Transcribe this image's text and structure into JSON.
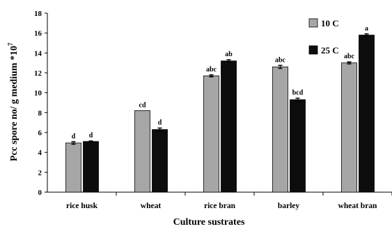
{
  "chart_data": {
    "type": "bar",
    "categories": [
      "rice husk",
      "wheat",
      "rice bran",
      "barley",
      "wheat bran"
    ],
    "series": [
      {
        "name": "10 C",
        "color": "#a6a6a6",
        "values": [
          4.95,
          8.2,
          11.7,
          12.6,
          13.0
        ],
        "errors": [
          0.12,
          0.0,
          0.1,
          0.15,
          0.1
        ],
        "significance": [
          "d",
          "cd",
          "abc",
          "abc",
          "abc"
        ]
      },
      {
        "name": "25 C",
        "color": "#0d0d0d",
        "values": [
          5.1,
          6.3,
          13.2,
          9.3,
          15.8
        ],
        "errors": [
          0.05,
          0.15,
          0.12,
          0.15,
          0.12
        ],
        "significance": [
          "d",
          "d",
          "ab",
          "bcd",
          "a"
        ]
      }
    ],
    "ylim": [
      0,
      18
    ],
    "yticks": [
      0,
      2,
      4,
      6,
      8,
      10,
      12,
      14,
      16,
      18
    ],
    "ylabel": "Pcc spore no/ g medium *10",
    "ylabel_exponent": "7",
    "xlabel": "Culture sustrates",
    "legend_position": "top-right",
    "grid": false
  }
}
